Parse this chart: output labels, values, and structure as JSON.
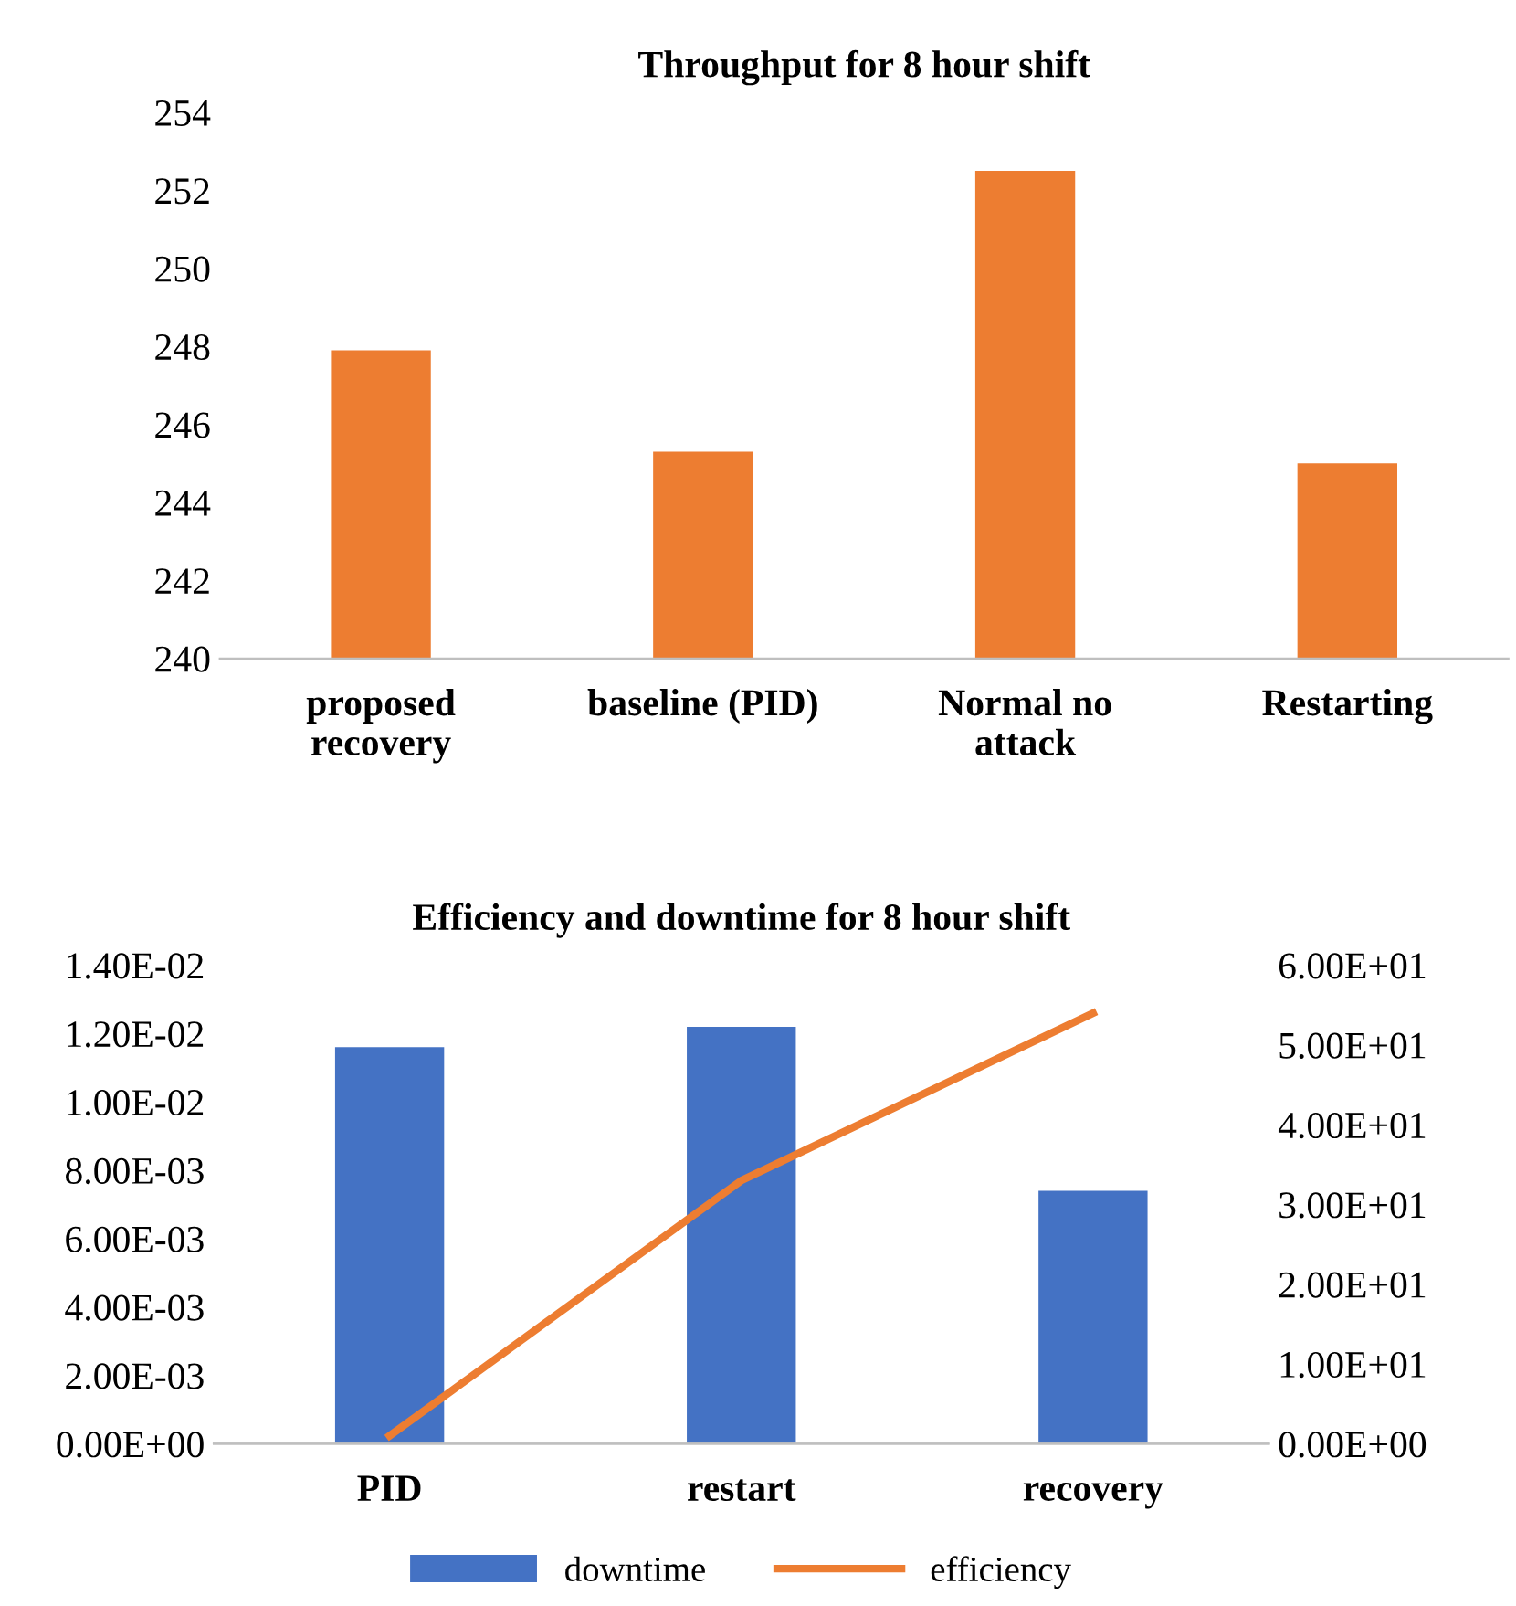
{
  "chart_data": [
    {
      "type": "bar",
      "title": "Throughput for 8 hour shift",
      "categories": [
        "proposed\nrecovery",
        "baseline (PID)",
        "Normal no\nattack",
        "Restarting"
      ],
      "values": [
        247.9,
        245.3,
        252.5,
        245.0
      ],
      "color": "#ed7d31",
      "ylim": [
        240,
        254
      ],
      "yticks": [
        240,
        242,
        244,
        246,
        248,
        250,
        252,
        254
      ],
      "grid": false,
      "legend": false
    },
    {
      "type": "bar",
      "title": "Efficiency and downtime for 8 hour shift",
      "categories": [
        "PID",
        "restart",
        "recovery"
      ],
      "series": [
        {
          "name": "downtime",
          "color": "#4472c4",
          "type": "bar",
          "values": [
            0.0116,
            0.0122,
            0.0074
          ]
        },
        {
          "name": "efficiency",
          "color": "#ed7d31",
          "type": "line",
          "axis": "y2",
          "values": [
            1,
            33,
            54
          ]
        }
      ],
      "ylim": [
        0,
        0.014
      ],
      "yticks": [
        {
          "value": 0,
          "label": "0.00E+00"
        },
        {
          "value": 0.002,
          "label": "2.00E-03"
        },
        {
          "value": 0.004,
          "label": "4.00E-03"
        },
        {
          "value": 0.006,
          "label": "6.00E-03"
        },
        {
          "value": 0.008,
          "label": "8.00E-03"
        },
        {
          "value": 0.01,
          "label": "1.00E-02"
        },
        {
          "value": 0.012,
          "label": "1.20E-02"
        },
        {
          "value": 0.014,
          "label": "1.40E-02"
        }
      ],
      "y2lim": [
        0,
        60
      ],
      "y2ticks": [
        {
          "value": 0,
          "label": "0.00E+00"
        },
        {
          "value": 10,
          "label": "1.00E+01"
        },
        {
          "value": 20,
          "label": "2.00E+01"
        },
        {
          "value": 30,
          "label": "3.00E+01"
        },
        {
          "value": 40,
          "label": "4.00E+01"
        },
        {
          "value": 50,
          "label": "5.00E+01"
        },
        {
          "value": 60,
          "label": "6.00E+01"
        }
      ],
      "grid": false,
      "legend": "bottom",
      "marker": "none",
      "line_style": "solid"
    }
  ]
}
